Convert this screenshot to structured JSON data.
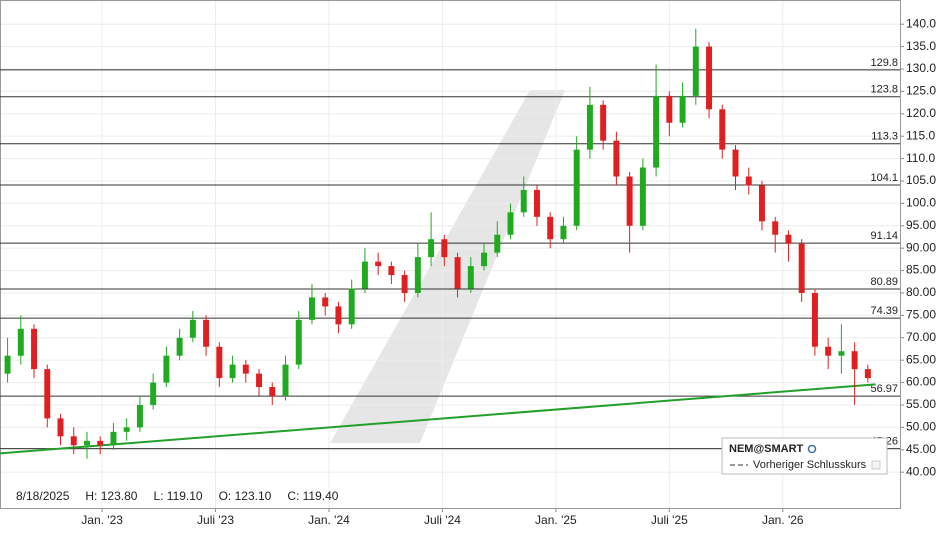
{
  "chart_data": {
    "type": "candlestick",
    "x": [
      -5.0,
      -4.3,
      -3.6,
      -2.9,
      -2.2,
      -1.5,
      -0.8,
      -0.1,
      0.6,
      1.3,
      2.0,
      2.7,
      3.4,
      4.1,
      4.8,
      5.5,
      6.2,
      6.9,
      7.6,
      8.3,
      9.0,
      9.7,
      10.4,
      11.1,
      11.8,
      12.5,
      13.2,
      13.9,
      14.6,
      15.3,
      16.0,
      16.7,
      17.4,
      18.1,
      18.8,
      19.5,
      20.2,
      20.9,
      21.6,
      22.3,
      23.0,
      23.7,
      24.4,
      25.1,
      25.8,
      26.5,
      27.2,
      27.9,
      28.6,
      29.3,
      30.0,
      30.7,
      31.4,
      32.1,
      32.8,
      33.5,
      34.2,
      34.9,
      35.6,
      36.3,
      37.0,
      37.7,
      38.4,
      39.1,
      39.8,
      40.5
    ],
    "open": [
      62,
      66,
      72,
      63,
      52,
      48,
      46,
      47,
      46,
      49,
      50,
      55,
      60,
      66,
      70,
      74,
      68,
      61,
      64,
      62,
      59,
      57,
      64,
      74,
      79,
      77,
      73,
      81,
      87,
      86,
      84,
      80,
      88,
      92,
      88,
      81,
      86,
      89,
      93,
      98,
      103,
      97,
      92,
      95,
      112,
      122,
      114,
      106,
      95,
      108,
      124,
      118,
      124,
      135,
      121,
      112,
      106,
      104,
      96,
      93,
      91,
      80,
      68,
      66,
      67,
      63
    ],
    "high": [
      70,
      75,
      73,
      64,
      53,
      50,
      49,
      48,
      51,
      52,
      57,
      62,
      68,
      72,
      76,
      75,
      69,
      66,
      65,
      63,
      60,
      66,
      76,
      82,
      80,
      78,
      83,
      90,
      89,
      87,
      85,
      91,
      98,
      93,
      89,
      88,
      91,
      96,
      100,
      106,
      104,
      98,
      97,
      115,
      126,
      123,
      116,
      107,
      110,
      131,
      125,
      127,
      139,
      136,
      122,
      113,
      108,
      105,
      97,
      94,
      92,
      81,
      70,
      73,
      69,
      64
    ],
    "low": [
      60,
      64,
      61,
      50,
      46,
      44,
      43,
      44,
      45,
      47,
      49,
      54,
      59,
      65,
      69,
      66,
      59,
      60,
      60,
      57,
      55,
      56,
      63,
      73,
      75,
      71,
      72,
      80,
      84,
      82,
      78,
      79,
      86,
      86,
      79,
      80,
      85,
      88,
      92,
      97,
      95,
      90,
      91,
      94,
      110,
      112,
      104,
      89,
      94,
      106,
      115,
      117,
      122,
      119,
      110,
      103,
      102,
      94,
      89,
      87,
      78,
      66,
      63,
      62,
      55,
      60
    ],
    "close": [
      66,
      72,
      63,
      52,
      48,
      46,
      47,
      46,
      49,
      50,
      55,
      60,
      66,
      70,
      74,
      68,
      61,
      64,
      62,
      59,
      57,
      64,
      74,
      79,
      77,
      73,
      81,
      87,
      86,
      84,
      80,
      88,
      92,
      88,
      81,
      86,
      89,
      93,
      98,
      103,
      97,
      92,
      95,
      112,
      122,
      114,
      106,
      95,
      108,
      124,
      118,
      124,
      135,
      121,
      112,
      106,
      104,
      96,
      93,
      91,
      80,
      68,
      66,
      67,
      63,
      61
    ],
    "up_color": "#1faa1f",
    "down_color": "#e02020",
    "xlim": [
      -5.4,
      42.2
    ],
    "ylim": [
      32,
      145.4
    ],
    "xticks": [
      {
        "value": 0,
        "label": "Jan. '23"
      },
      {
        "value": 6,
        "label": "Juli '23"
      },
      {
        "value": 12,
        "label": "Jan. '24"
      },
      {
        "value": 18,
        "label": "Juli '24"
      },
      {
        "value": 24,
        "label": "Jan. '25"
      },
      {
        "value": 30,
        "label": "Juli '25"
      },
      {
        "value": 36,
        "label": "Jan. '26"
      }
    ],
    "yticks": [
      {
        "value": 40,
        "label": "40.00"
      },
      {
        "value": 45,
        "label": "45.00"
      },
      {
        "value": 50,
        "label": "50.00"
      },
      {
        "value": 55,
        "label": "55.00"
      },
      {
        "value": 60,
        "label": "60.00"
      },
      {
        "value": 65,
        "label": "65.00"
      },
      {
        "value": 70,
        "label": "70.00"
      },
      {
        "value": 75,
        "label": "75.00"
      },
      {
        "value": 80,
        "label": "80.00"
      },
      {
        "value": 85,
        "label": "85.00"
      },
      {
        "value": 90,
        "label": "90.00"
      },
      {
        "value": 95,
        "label": "95.00"
      },
      {
        "value": 100,
        "label": "100.0"
      },
      {
        "value": 105,
        "label": "105.0"
      },
      {
        "value": 110,
        "label": "110.0"
      },
      {
        "value": 115,
        "label": "115.0"
      },
      {
        "value": 120,
        "label": "120.0"
      },
      {
        "value": 125,
        "label": "125.0"
      },
      {
        "value": 130,
        "label": "130.0"
      },
      {
        "value": 135,
        "label": "135.0"
      },
      {
        "value": 140,
        "label": "140.0"
      }
    ],
    "grid": true,
    "levels": [
      129.8,
      123.8,
      113.3,
      104.1,
      91.14,
      80.89,
      74.39,
      56.97,
      45.26
    ],
    "trendline": {
      "x": [
        -5.4,
        40.9
      ],
      "values": [
        44.2,
        59.6
      ],
      "color": "#22a02a"
    },
    "readout": [
      "8/18/2025",
      "H: 123.80",
      "L: 119.10",
      "O: 123.10",
      "C: 119.40"
    ],
    "legend": {
      "symbol": "NEM@SMART",
      "entry": "Vorheriger Schlusskurs"
    }
  }
}
